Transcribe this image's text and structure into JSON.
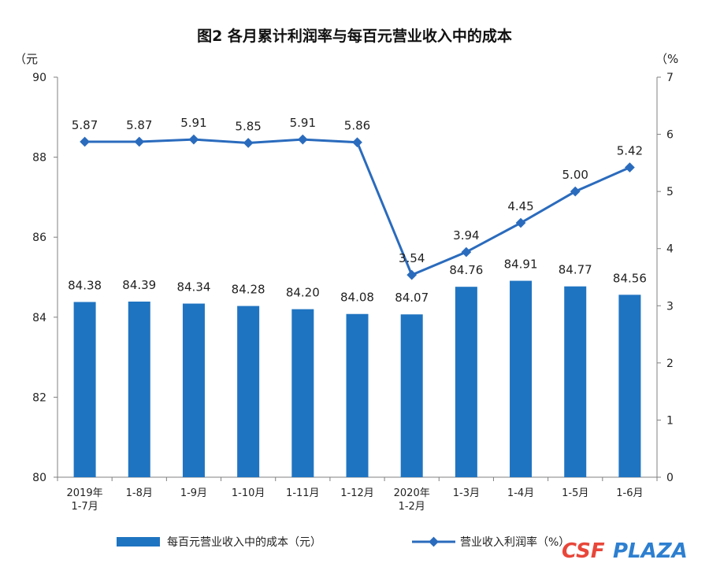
{
  "chart_data": {
    "type": "bar+line",
    "title": "图2  各月累计利润率与每百元营业收入中的成本",
    "left_axis": {
      "unit": "（元",
      "ylim": [
        80,
        90
      ],
      "ticks": [
        80,
        82,
        84,
        86,
        88,
        90
      ]
    },
    "right_axis": {
      "unit": "（%",
      "ylim": [
        0,
        7
      ],
      "ticks": [
        0,
        1,
        2,
        3,
        4,
        5,
        6,
        7
      ]
    },
    "categories": [
      [
        "2019年",
        "1-7月"
      ],
      [
        "1-8月"
      ],
      [
        "1-9月"
      ],
      [
        "1-10月"
      ],
      [
        "1-11月"
      ],
      [
        "1-12月"
      ],
      [
        "2020年",
        "1-2月"
      ],
      [
        "1-3月"
      ],
      [
        "1-4月"
      ],
      [
        "1-5月"
      ],
      [
        "1-6月"
      ]
    ],
    "series": [
      {
        "name": "每百元营业收入中的成本（元）",
        "type": "bar",
        "axis": "left",
        "color": "#1f74c1",
        "values": [
          84.38,
          84.39,
          84.34,
          84.28,
          84.2,
          84.08,
          84.07,
          84.76,
          84.91,
          84.77,
          84.56
        ],
        "labels": [
          "84.38",
          "84.39",
          "84.34",
          "84.28",
          "84.20",
          "84.08",
          "84.07",
          "84.76",
          "84.91",
          "84.77",
          "84.56"
        ]
      },
      {
        "name": "营业收入利润率（%）",
        "type": "line",
        "axis": "right",
        "color": "#2a6bbd",
        "values": [
          5.87,
          5.87,
          5.91,
          5.85,
          5.91,
          5.86,
          3.54,
          3.94,
          4.45,
          5.0,
          5.42
        ],
        "labels": [
          "5.87",
          "5.87",
          "5.91",
          "5.85",
          "5.91",
          "5.86",
          "3.54",
          "3.94",
          "4.45",
          "5.00",
          "5.42"
        ]
      }
    ],
    "legend_position": "bottom"
  },
  "watermark": {
    "part1": "CSF",
    "part2": "PLAZA",
    "color1": "#e8473a",
    "color2": "#2d7fd0"
  }
}
